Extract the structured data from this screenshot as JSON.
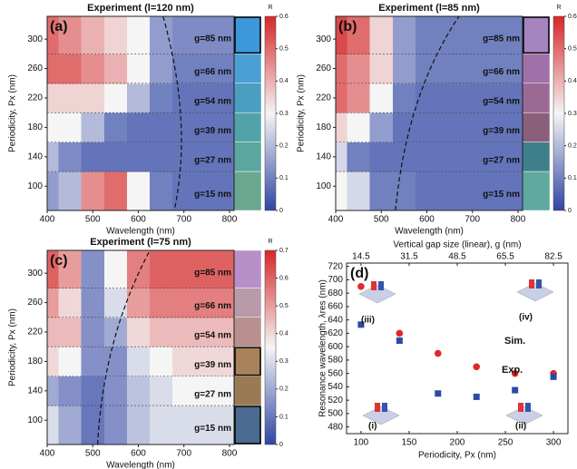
{
  "chart_data": [
    {
      "type": "heatmap",
      "panel_label": "(a)",
      "title": "Experiment (l=120 nm)",
      "x_label": "Wavelength (nm)",
      "y_label": "Periodicity, Px (nm)",
      "x": [
        400,
        450,
        500,
        550,
        600,
        650,
        700,
        750,
        800
      ],
      "y": [
        100,
        140,
        180,
        220,
        260,
        300
      ],
      "z": [
        [
          0.15,
          0.2,
          0.45,
          0.5,
          0.3,
          0.1,
          0.08,
          0.08,
          0.08
        ],
        [
          0.2,
          0.12,
          0.08,
          0.08,
          0.08,
          0.08,
          0.08,
          0.08,
          0.08
        ],
        [
          0.3,
          0.3,
          0.2,
          0.1,
          0.08,
          0.08,
          0.08,
          0.08,
          0.08
        ],
        [
          0.35,
          0.35,
          0.35,
          0.3,
          0.2,
          0.1,
          0.08,
          0.08,
          0.08
        ],
        [
          0.5,
          0.5,
          0.45,
          0.4,
          0.3,
          0.15,
          0.1,
          0.1,
          0.1
        ],
        [
          0.5,
          0.45,
          0.4,
          0.35,
          0.3,
          0.15,
          0.12,
          0.12,
          0.12
        ]
      ],
      "xlim": [
        400,
        810
      ],
      "ylim": [
        67,
        331
      ],
      "xticks": [
        400,
        500,
        600,
        700,
        800
      ],
      "yticks": [
        100,
        140,
        180,
        220,
        260,
        300
      ],
      "row_labels": [
        "g=15 nm",
        "g=27 nm",
        "g=39 nm",
        "g=54 nm",
        "g=66 nm",
        "g=85 nm"
      ],
      "swatch_colors": [
        "#6aa891",
        "#5aa7a0",
        "#52a3a9",
        "#4a9fc0",
        "#4a9fd4",
        "#3c98db"
      ],
      "highlighted_rows": [
        5
      ],
      "colorbar_label": "R",
      "zlim": [
        0,
        0.6
      ],
      "zticks": [
        0,
        0.1,
        0.2,
        0.3,
        0.4,
        0.5,
        0.6
      ]
    },
    {
      "type": "heatmap",
      "panel_label": "(b)",
      "title": "Experiment (l=85 nm)",
      "x_label": "Wavelength (nm)",
      "y_label": "Periodicity, Px (nm)",
      "x": [
        400,
        450,
        500,
        550,
        600,
        650,
        700,
        750,
        800
      ],
      "y": [
        100,
        140,
        180,
        220,
        260,
        300
      ],
      "z": [
        [
          0.3,
          0.25,
          0.1,
          0.1,
          0.08,
          0.08,
          0.08,
          0.08,
          0.08
        ],
        [
          0.25,
          0.1,
          0.08,
          0.08,
          0.08,
          0.08,
          0.08,
          0.08,
          0.08
        ],
        [
          0.35,
          0.3,
          0.15,
          0.08,
          0.08,
          0.08,
          0.08,
          0.08,
          0.08
        ],
        [
          0.5,
          0.45,
          0.3,
          0.1,
          0.08,
          0.08,
          0.08,
          0.08,
          0.08
        ],
        [
          0.5,
          0.45,
          0.35,
          0.15,
          0.1,
          0.1,
          0.1,
          0.1,
          0.1
        ],
        [
          0.55,
          0.5,
          0.35,
          0.15,
          0.1,
          0.1,
          0.1,
          0.1,
          0.1
        ]
      ],
      "xlim": [
        400,
        810
      ],
      "ylim": [
        67,
        331
      ],
      "xticks": [
        400,
        500,
        600,
        700,
        800
      ],
      "yticks": [
        100,
        140,
        180,
        220,
        260,
        300
      ],
      "row_labels": [
        "g=15 nm",
        "g=27 nm",
        "g=39 nm",
        "g=54 nm",
        "g=66 nm",
        "g=85 nm"
      ],
      "swatch_colors": [
        "#5ea8a0",
        "#3f7f8a",
        "#8a5f7a",
        "#9a6a95",
        "#a070a8",
        "#a684c0"
      ],
      "highlighted_rows": [
        5
      ],
      "colorbar_label": "R",
      "zlim": [
        0,
        0.6
      ],
      "zticks": [
        0,
        0.1,
        0.2,
        0.3,
        0.4,
        0.5,
        0.6
      ]
    },
    {
      "type": "heatmap",
      "panel_label": "(c)",
      "title": "Experiment (l=75 nm)",
      "x_label": "Wavelength (nm)",
      "y_label": "Periodicity, Px (nm)",
      "x": [
        400,
        450,
        500,
        550,
        600,
        650,
        700,
        750,
        800
      ],
      "y": [
        100,
        140,
        180,
        220,
        260,
        300
      ],
      "z": [
        [
          0.3,
          0.2,
          0.1,
          0.15,
          0.25,
          0.3,
          0.3,
          0.3,
          0.3
        ],
        [
          0.2,
          0.15,
          0.1,
          0.15,
          0.25,
          0.3,
          0.35,
          0.35,
          0.35
        ],
        [
          0.4,
          0.35,
          0.15,
          0.15,
          0.3,
          0.35,
          0.4,
          0.4,
          0.4
        ],
        [
          0.45,
          0.45,
          0.15,
          0.2,
          0.4,
          0.45,
          0.45,
          0.45,
          0.45
        ],
        [
          0.5,
          0.4,
          0.15,
          0.3,
          0.5,
          0.55,
          0.55,
          0.55,
          0.55
        ],
        [
          0.6,
          0.5,
          0.15,
          0.35,
          0.55,
          0.6,
          0.6,
          0.6,
          0.6
        ]
      ],
      "xlim": [
        400,
        810
      ],
      "ylim": [
        67,
        331
      ],
      "xticks": [
        400,
        500,
        600,
        700,
        800
      ],
      "yticks": [
        100,
        140,
        180,
        220,
        260,
        300
      ],
      "row_labels": [
        "g=15 nm",
        "g=27 nm",
        "g=39 nm",
        "g=54 nm",
        "g=66 nm",
        "g=85 nm"
      ],
      "swatch_colors": [
        "#4a6a8f",
        "#9a7a55",
        "#a8825a",
        "#b89090",
        "#b89aa8",
        "#b890c8"
      ],
      "highlighted_rows": [
        0,
        2
      ],
      "colorbar_label": "R",
      "zlim": [
        0,
        0.7
      ],
      "zticks": [
        0,
        0.1,
        0.2,
        0.3,
        0.4,
        0.5,
        0.6,
        0.7
      ]
    },
    {
      "type": "scatter",
      "panel_label": "(d)",
      "x_label": "Periodicity, Px (nm)",
      "y_label": "Resonance wavelength, λres (nm)",
      "x2_label": "Vertical gap size (linear), g (nm)",
      "xlim": [
        85,
        315
      ],
      "xticks": [
        100,
        150,
        200,
        250,
        300
      ],
      "x2lim": [
        9.4,
        87.6
      ],
      "x2ticks": [
        14.5,
        31.5,
        48.5,
        65.5,
        82.5
      ],
      "ylim": [
        470,
        725
      ],
      "yticks": [
        480,
        500,
        520,
        540,
        560,
        580,
        600,
        620,
        640,
        660,
        680,
        700,
        720
      ],
      "series": [
        {
          "name": "Sim.",
          "color": "#e0282a",
          "marker": "circle",
          "x": [
            100,
            140,
            180,
            220,
            260,
            300
          ],
          "values": [
            690,
            620,
            590,
            570,
            560,
            560
          ]
        },
        {
          "name": "Exp.",
          "color": "#2b4aa8",
          "marker": "square",
          "x": [
            100,
            140,
            180,
            220,
            260,
            300
          ],
          "values": [
            633,
            609,
            530,
            525,
            535,
            555
          ]
        }
      ],
      "annotations": [
        "(i)",
        "(ii)",
        "(iii)",
        "(iv)"
      ]
    }
  ]
}
